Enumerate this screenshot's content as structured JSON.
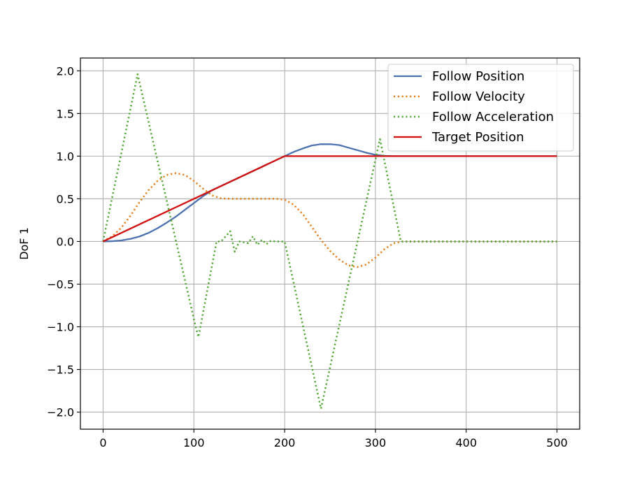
{
  "chart_data": {
    "type": "line",
    "title": "",
    "xlabel": "",
    "ylabel": "DoF 1",
    "xlim": [
      -25,
      525
    ],
    "ylim": [
      -2.2,
      2.15
    ],
    "xticks": [
      0,
      100,
      200,
      300,
      400,
      500
    ],
    "yticks": [
      -2.0,
      -1.5,
      -1.0,
      -0.5,
      0.0,
      0.5,
      1.0,
      1.5,
      2.0
    ],
    "xtick_labels": [
      "0",
      "100",
      "200",
      "300",
      "400",
      "500"
    ],
    "ytick_labels": [
      "−2.0",
      "−1.5",
      "−1.0",
      "−0.5",
      "0.0",
      "0.5",
      "1.0",
      "1.5",
      "2.0"
    ],
    "grid": true,
    "legend_position": "top-right",
    "series": [
      {
        "name": "Follow Position",
        "color": "#4c72b0",
        "style": "solid",
        "x": [
          0,
          10,
          20,
          30,
          40,
          50,
          60,
          70,
          80,
          90,
          100,
          110,
          120,
          130,
          140,
          150,
          160,
          170,
          180,
          190,
          200,
          210,
          220,
          230,
          240,
          250,
          260,
          270,
          280,
          290,
          300,
          310,
          320,
          330,
          400,
          500
        ],
        "y": [
          0.0,
          0.003,
          0.012,
          0.03,
          0.058,
          0.1,
          0.155,
          0.22,
          0.29,
          0.37,
          0.45,
          0.53,
          0.6,
          0.65,
          0.7,
          0.75,
          0.8,
          0.85,
          0.9,
          0.95,
          1.0,
          1.05,
          1.09,
          1.125,
          1.14,
          1.14,
          1.13,
          1.1,
          1.07,
          1.04,
          1.015,
          1.003,
          1.0,
          1.0,
          1.0,
          1.0
        ]
      },
      {
        "name": "Follow Velocity",
        "color": "#e6801f",
        "style": "dotted",
        "x": [
          0,
          10,
          20,
          30,
          40,
          50,
          60,
          70,
          80,
          90,
          100,
          110,
          120,
          130,
          140,
          150,
          160,
          170,
          180,
          190,
          200,
          210,
          220,
          230,
          240,
          250,
          260,
          270,
          280,
          290,
          300,
          310,
          320,
          330,
          400,
          500
        ],
        "y": [
          0.0,
          0.06,
          0.16,
          0.3,
          0.46,
          0.6,
          0.71,
          0.78,
          0.8,
          0.78,
          0.71,
          0.62,
          0.54,
          0.505,
          0.5,
          0.5,
          0.5,
          0.5,
          0.5,
          0.5,
          0.49,
          0.43,
          0.32,
          0.17,
          0.02,
          -0.11,
          -0.21,
          -0.28,
          -0.3,
          -0.27,
          -0.19,
          -0.09,
          -0.02,
          0.0,
          0.0,
          0.0
        ]
      },
      {
        "name": "Follow Acceleration",
        "color": "#55a838",
        "style": "dotted",
        "x": [
          0,
          38,
          102,
          105,
          125,
          130,
          140,
          145,
          150,
          160,
          165,
          170,
          175,
          180,
          185,
          190,
          200,
          240,
          305,
          328,
          400,
          500
        ],
        "y": [
          0.0,
          1.96,
          -1.0,
          -1.12,
          0.0,
          0.0,
          0.12,
          -0.12,
          0.0,
          -0.02,
          0.06,
          -0.04,
          0.02,
          -0.03,
          0.01,
          0.0,
          0.0,
          -1.96,
          1.2,
          0.0,
          0.0,
          0.0
        ]
      },
      {
        "name": "Target Position",
        "color": "#d20f0f",
        "style": "solid",
        "x": [
          0,
          200,
          500
        ],
        "y": [
          0.0,
          1.0,
          1.0
        ]
      }
    ]
  }
}
